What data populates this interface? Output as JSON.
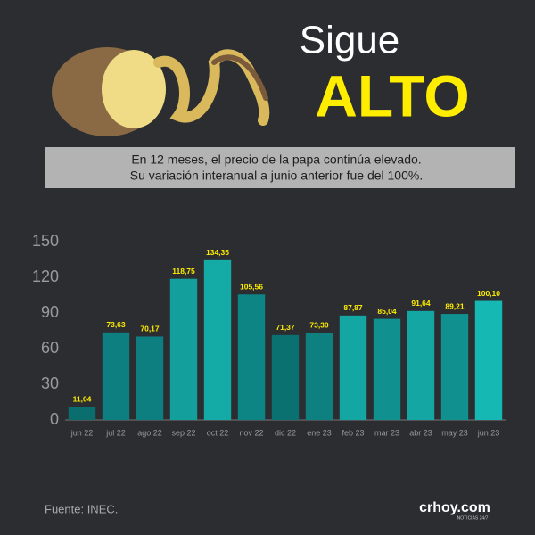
{
  "chart_data": {
    "type": "bar",
    "title": "Sigue",
    "title_emphasis": "ALTO",
    "subtitle_lines": [
      "En 12 meses, el precio de la papa continúa elevado.",
      "Su variación interanual a junio anterior fue del 100%."
    ],
    "categories": [
      "jun 22",
      "jul 22",
      "ago 22",
      "sep 22",
      "oct 22",
      "nov 22",
      "dic 22",
      "ene 23",
      "feb 23",
      "mar 23",
      "abr 23",
      "may 23",
      "jun 23"
    ],
    "values": [
      11.04,
      73.63,
      70.17,
      118.75,
      134.35,
      105.56,
      71.37,
      73.3,
      87.87,
      85.04,
      91.64,
      89.21,
      100.1
    ],
    "value_labels": [
      "11,04",
      "73,63",
      "70,17",
      "118,75",
      "134,35",
      "105,56",
      "71,37",
      "73,30",
      "87,87",
      "85,04",
      "91,64",
      "89,21",
      "100,10"
    ],
    "colors": [
      "#0b6e6e",
      "#0e7f80",
      "#0e7f80",
      "#13a09c",
      "#14aaa6",
      "#0e8585",
      "#0b7070",
      "#0e8080",
      "#13a6a2",
      "#119090",
      "#13a6a2",
      "#119090",
      "#16b8b3"
    ],
    "ylim": [
      0,
      150
    ],
    "yticks": [
      0,
      30,
      60,
      90,
      120,
      150
    ],
    "grid": false,
    "source": "Fuente: INEC.",
    "logo": "crhoy.com",
    "logo_tagline": "NOTICIAS 24/7"
  }
}
